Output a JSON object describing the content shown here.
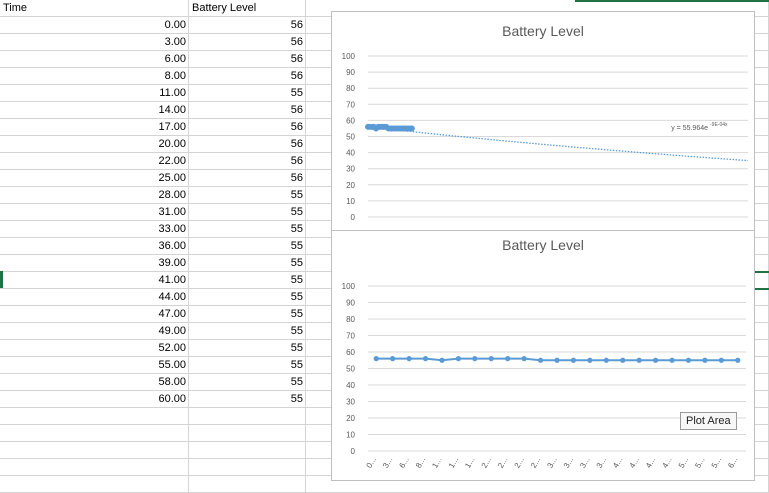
{
  "sheet": {
    "headers": {
      "a": "Time",
      "b": "Battery Level"
    },
    "rows": [
      {
        "time": "0.00",
        "level": "56"
      },
      {
        "time": "3.00",
        "level": "56"
      },
      {
        "time": "6.00",
        "level": "56"
      },
      {
        "time": "8.00",
        "level": "56"
      },
      {
        "time": "11.00",
        "level": "55"
      },
      {
        "time": "14.00",
        "level": "56"
      },
      {
        "time": "17.00",
        "level": "56"
      },
      {
        "time": "20.00",
        "level": "56"
      },
      {
        "time": "22.00",
        "level": "56"
      },
      {
        "time": "25.00",
        "level": "56"
      },
      {
        "time": "28.00",
        "level": "55"
      },
      {
        "time": "31.00",
        "level": "55"
      },
      {
        "time": "33.00",
        "level": "55"
      },
      {
        "time": "36.00",
        "level": "55"
      },
      {
        "time": "39.00",
        "level": "55"
      },
      {
        "time": "41.00",
        "level": "55"
      },
      {
        "time": "44.00",
        "level": "55"
      },
      {
        "time": "47.00",
        "level": "55"
      },
      {
        "time": "49.00",
        "level": "55"
      },
      {
        "time": "52.00",
        "level": "55"
      },
      {
        "time": "55.00",
        "level": "55"
      },
      {
        "time": "58.00",
        "level": "55"
      },
      {
        "time": "60.00",
        "level": "55"
      }
    ]
  },
  "tooltip": {
    "text": "Plot Area"
  },
  "colors": {
    "series": "#5b9bd5",
    "grid": "#d9d9d9",
    "selection": "#217346"
  },
  "chart_data": [
    {
      "type": "scatter",
      "title": "Battery Level",
      "x": [
        0,
        3,
        6,
        8,
        11,
        14,
        17,
        20,
        22,
        25,
        28,
        31,
        33,
        36,
        39,
        41,
        44,
        47,
        49,
        52,
        55,
        58,
        60
      ],
      "y": [
        56,
        56,
        56,
        56,
        55,
        56,
        56,
        56,
        56,
        56,
        55,
        55,
        55,
        55,
        55,
        55,
        55,
        55,
        55,
        55,
        55,
        55,
        55
      ],
      "ylim": [
        0,
        100
      ],
      "yticks": [
        "0",
        "10",
        "20",
        "30",
        "40",
        "50",
        "60",
        "70",
        "80",
        "90",
        "100"
      ],
      "trendline": {
        "type": "exponential",
        "a": 55.964,
        "b": -0.0009,
        "label": "y = 55.964e",
        "label_exp": "-9E-04x"
      },
      "grid": true,
      "legend": "none"
    },
    {
      "type": "line",
      "title": "Battery Level",
      "categories": [
        "0...",
        "3...",
        "6...",
        "8...",
        "1...",
        "1...",
        "1...",
        "2...",
        "2...",
        "2...",
        "2...",
        "3...",
        "3...",
        "3...",
        "3...",
        "4...",
        "4...",
        "4...",
        "4...",
        "5...",
        "5...",
        "5...",
        "6..."
      ],
      "values": [
        56,
        56,
        56,
        56,
        55,
        56,
        56,
        56,
        56,
        56,
        55,
        55,
        55,
        55,
        55,
        55,
        55,
        55,
        55,
        55,
        55,
        55,
        55
      ],
      "ylim": [
        0,
        100
      ],
      "yticks": [
        "0",
        "10",
        "20",
        "30",
        "40",
        "50",
        "60",
        "70",
        "80",
        "90",
        "100"
      ],
      "grid": true,
      "legend": "none"
    }
  ]
}
